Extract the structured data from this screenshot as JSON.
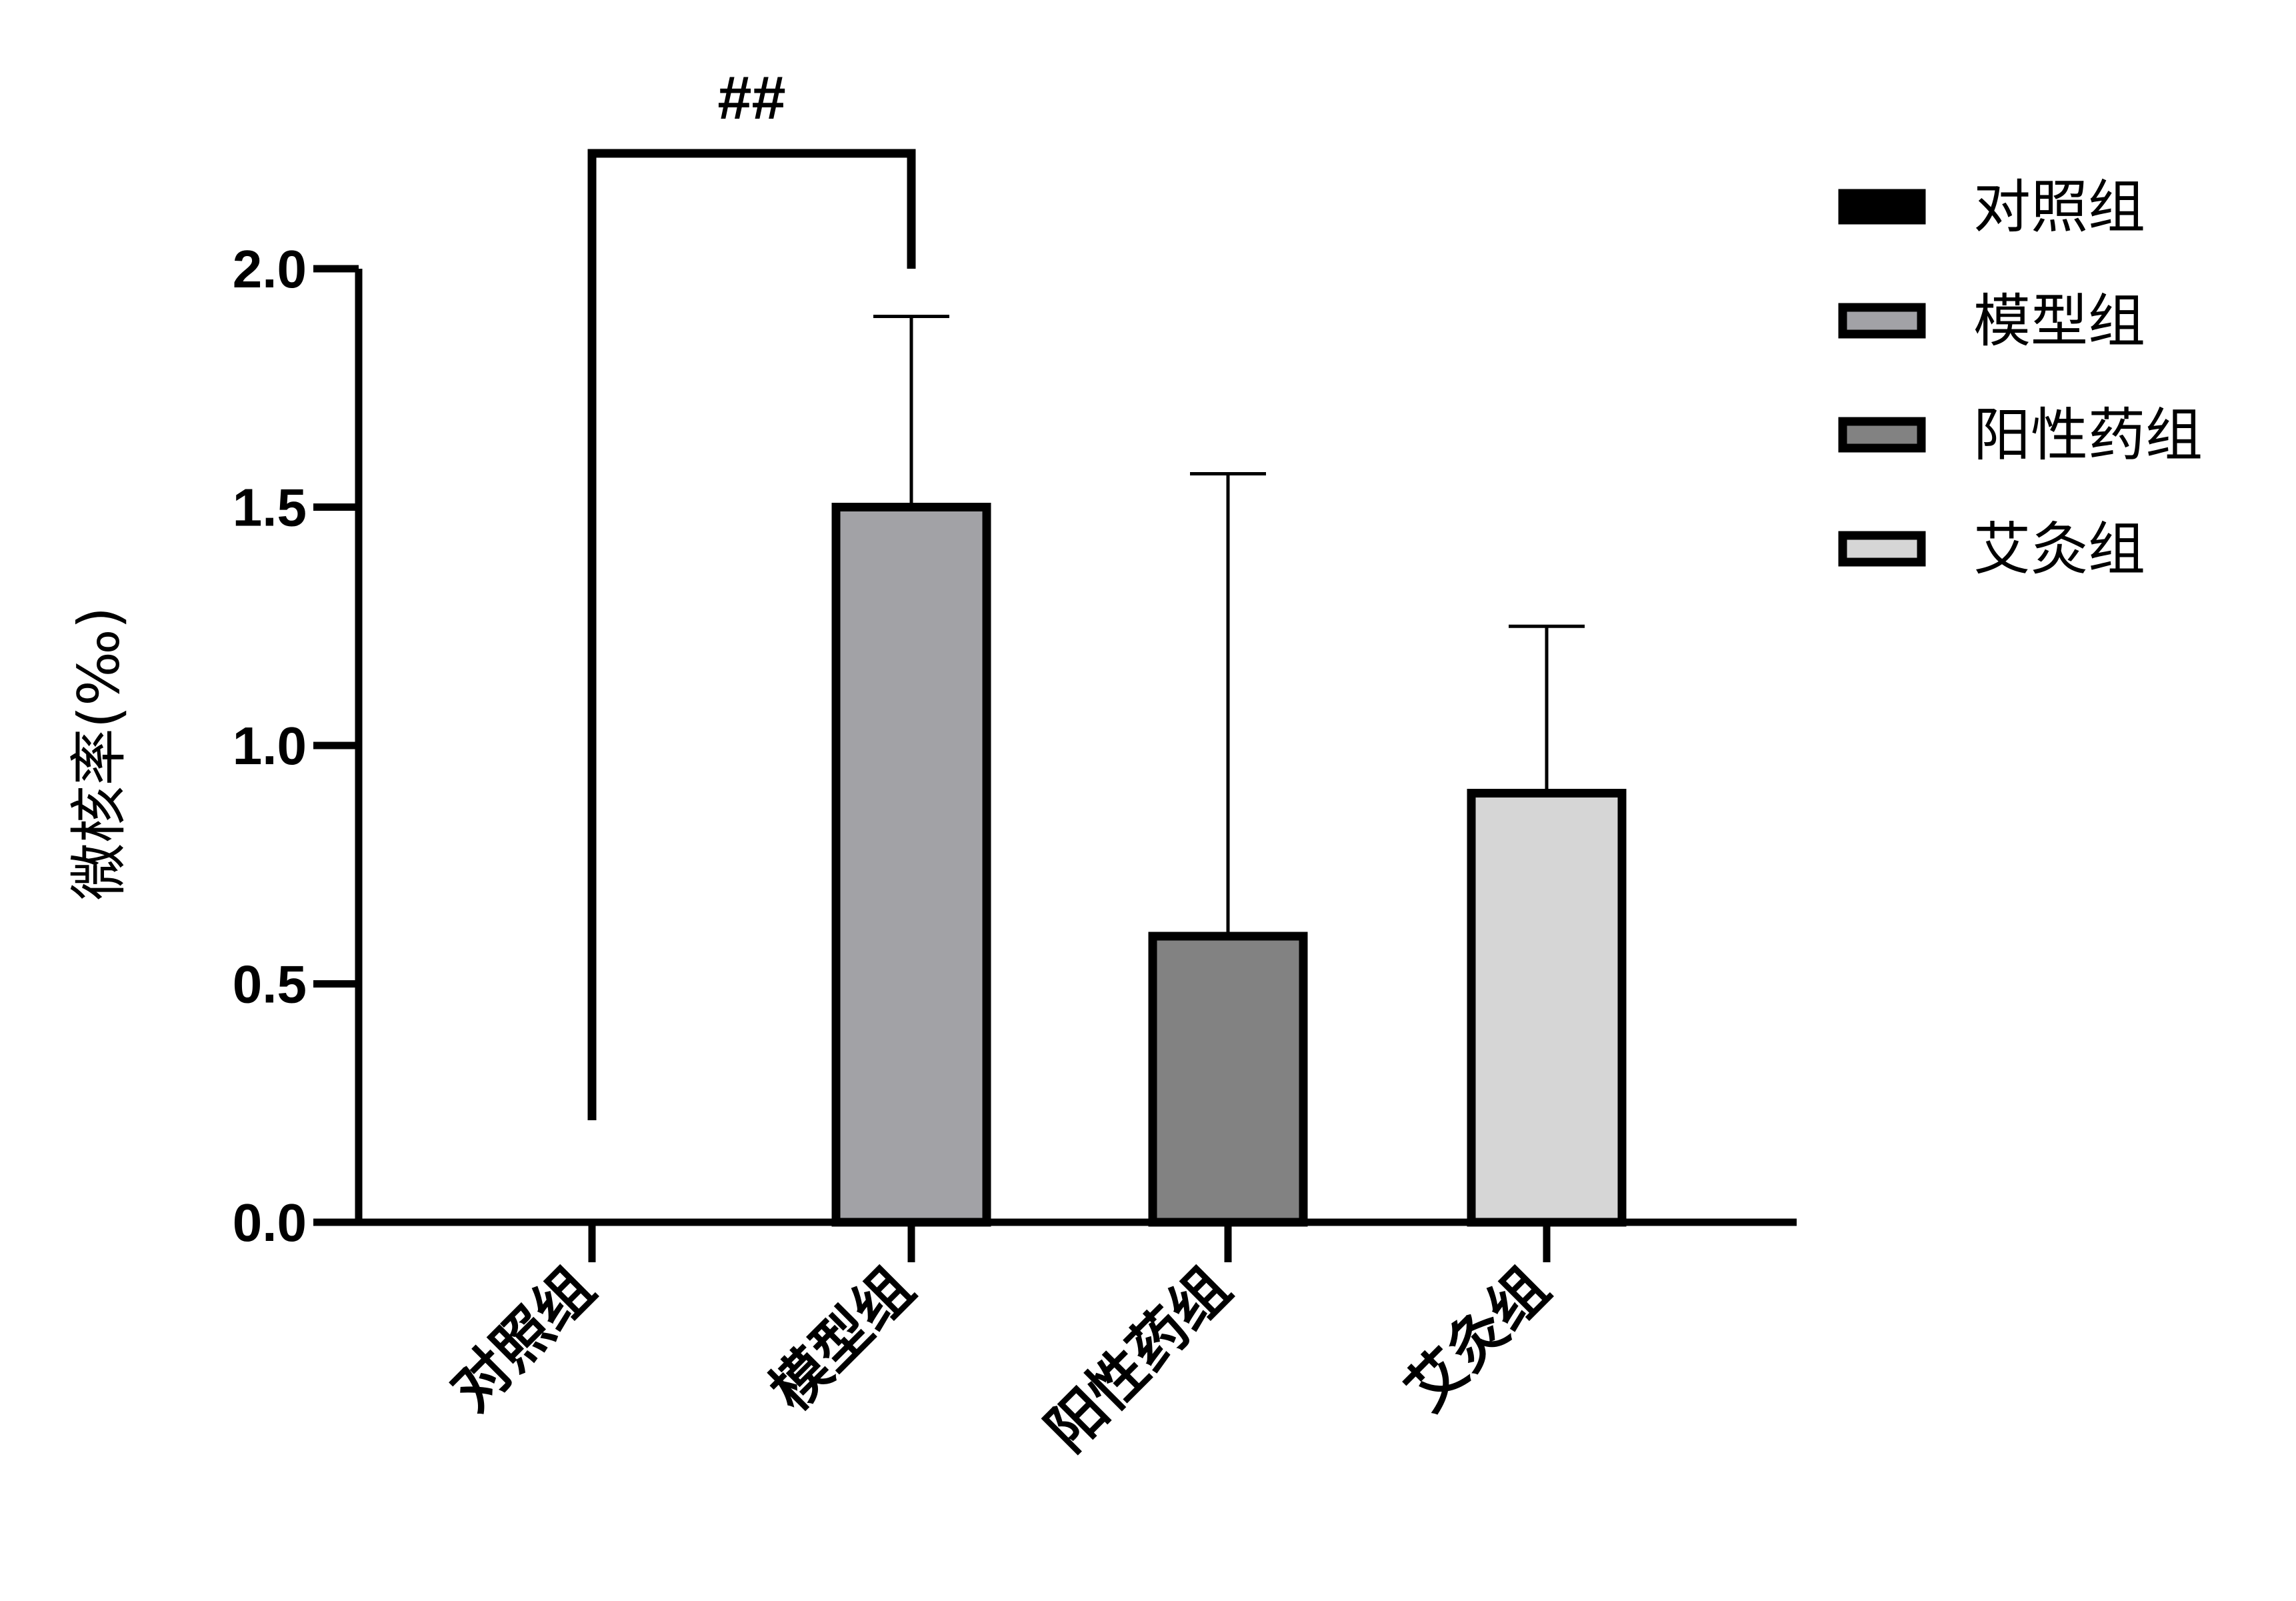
{
  "chart_data": {
    "type": "bar",
    "title": "",
    "xlabel": "",
    "ylabel": "微核率(‰)",
    "ylim": [
      0,
      2.0
    ],
    "yticks": [
      "0.0",
      "0.5",
      "1.0",
      "1.5",
      "2.0"
    ],
    "categories": [
      "对照组",
      "模型组",
      "阳性药组",
      "艾灸组"
    ],
    "values": [
      0.0,
      1.5,
      0.6,
      0.9
    ],
    "errors": [
      0.0,
      0.4,
      0.97,
      0.35
    ],
    "colors": [
      "#000000",
      "#a2a2a6",
      "#828282",
      "#d6d6d6"
    ],
    "legend": {
      "position": "right",
      "entries": [
        {
          "label": "对照组",
          "color": "#000000"
        },
        {
          "label": "模型组",
          "color": "#a2a2a6"
        },
        {
          "label": "阳性药组",
          "color": "#828282"
        },
        {
          "label": "艾灸组",
          "color": "#d6d6d6"
        }
      ]
    },
    "annotations": [
      {
        "text": "##",
        "from_category": "对照组",
        "to_category": "模型组"
      }
    ],
    "grid": false
  }
}
